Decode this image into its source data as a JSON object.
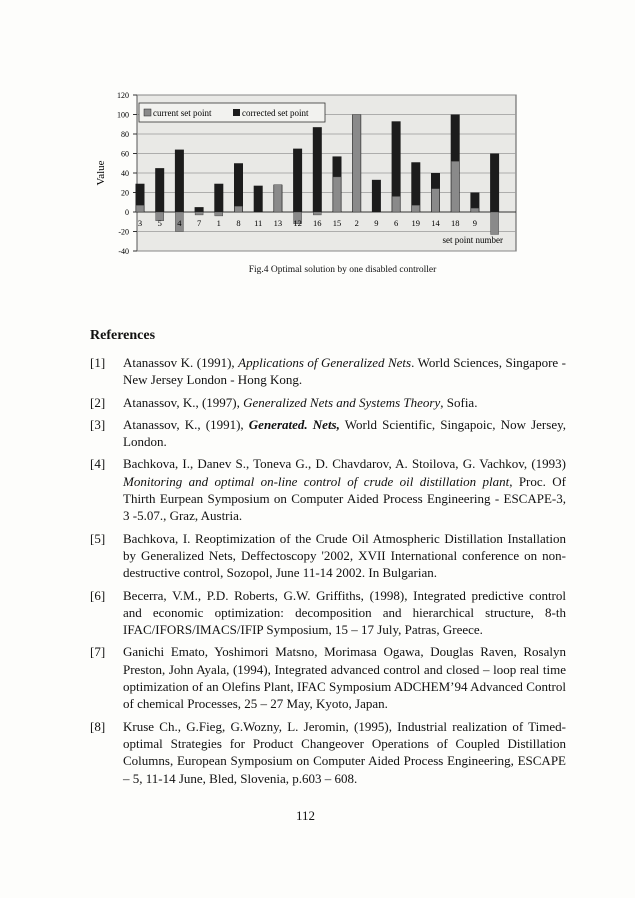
{
  "chart_data": {
    "type": "bar",
    "title": "",
    "ylabel": "Value",
    "xlabel": "set point number",
    "ylim": [
      -40,
      120
    ],
    "yticks": [
      -40,
      -20,
      0,
      20,
      40,
      60,
      80,
      100,
      120
    ],
    "grid": true,
    "legend_position": "top-left",
    "categories": [
      "3",
      "5",
      "4",
      "7",
      "1",
      "8",
      "11",
      "13",
      "12",
      "16",
      "15",
      "2",
      "9",
      "6",
      "19",
      "14",
      "18",
      "9",
      ""
    ],
    "series": [
      {
        "name": "current set point",
        "color": "#8a8a8a",
        "values": [
          7,
          -9,
          -20,
          -3,
          -4,
          6,
          0,
          28,
          -12,
          -3,
          36,
          100,
          0,
          16,
          7,
          24,
          52,
          4,
          -23
        ]
      },
      {
        "name": "corrected set point",
        "color": "#1c1c1c",
        "values": [
          29,
          45,
          64,
          5,
          29,
          50,
          27,
          28,
          65,
          87,
          57,
          100,
          33,
          93,
          51,
          40,
          100,
          20,
          60
        ]
      }
    ]
  },
  "caption": "Fig.4 Optimal solution by one disabled controller",
  "references_title": "References",
  "references": [
    {
      "num": "[1]",
      "parts": [
        {
          "t": "Atanassov K. (1991), ",
          "s": ""
        },
        {
          "t": "Applications of Generalized Nets",
          "s": "i"
        },
        {
          "t": ". World Sciences, Singapore - New Jersey London - Hong Kong.",
          "s": ""
        }
      ]
    },
    {
      "num": "[2]",
      "parts": [
        {
          "t": "Atanassov, K., (1997), ",
          "s": ""
        },
        {
          "t": "Generalized Nets and Systems Theory",
          "s": "i"
        },
        {
          "t": ", Sofia.",
          "s": ""
        }
      ]
    },
    {
      "num": "[3]",
      "parts": [
        {
          "t": "Atanassov, K., (1991), ",
          "s": ""
        },
        {
          "t": "Generated. Nets,",
          "s": "bi"
        },
        {
          "t": " World Scientific, Singapoic, Now Jersey, London.",
          "s": ""
        }
      ]
    },
    {
      "num": "[4]",
      "parts": [
        {
          "t": "Bachkova, I., Danev S., Toneva G., D. Chavdarov, A. Stoilova, G. Vachkov, (1993) ",
          "s": ""
        },
        {
          "t": "Monitoring and optimal on-line control of crude oil distillation plant",
          "s": "i"
        },
        {
          "t": ", Proc. Of Thirth Eurpean Symposium on Computer Aided Process Engineering - ESCAPE-3, 3 -5.07., Graz, Austria.",
          "s": ""
        }
      ]
    },
    {
      "num": "[5]",
      "parts": [
        {
          "t": "Bachkova, I. Reoptimization of the Crude Oil Atmospheric Distillation Installation by Generalized Nets, Deffectoscopy '2002, XVII International conference on non-destructive control, Sozopol, June 11-14 2002. In Bulgarian.",
          "s": ""
        }
      ]
    },
    {
      "num": "[6]",
      "parts": [
        {
          "t": "Becerra, V.M., P.D. Roberts, G.W. Griffiths, (1998), Integrated predictive control and economic optimization: decomposition and hierarchical structure, 8-th IFAC/IFORS/IMACS/IFIP Symposium, 15 – 17 July, Patras, Greece.",
          "s": ""
        }
      ]
    },
    {
      "num": "[7]",
      "parts": [
        {
          "t": "Ganichi Emato, Yoshimori Matsno, Morimasa Ogawa, Douglas Raven, Rosalyn Preston, John Ayala, (1994), Integrated advanced control and closed – loop real time optimization of an Olefins Plant, IFAC Symposium ADCHEM’94 Advanced Control of chemical Processes, 25 – 27 May, Kyoto, Japan.",
          "s": ""
        }
      ]
    },
    {
      "num": "[8]",
      "parts": [
        {
          "t": "Kruse Ch., G.Fieg, G.Wozny, L. Jeromin, (1995), Industrial realization of Timed- optimal Strategies for Product Changeover Operations of Coupled Distillation Columns, European Symposium on Computer Aided Process Engineering, ESCAPE – 5, 11-14 June, Bled, Slovenia, p.603 – 608.",
          "s": ""
        }
      ]
    }
  ],
  "page_number": "112"
}
